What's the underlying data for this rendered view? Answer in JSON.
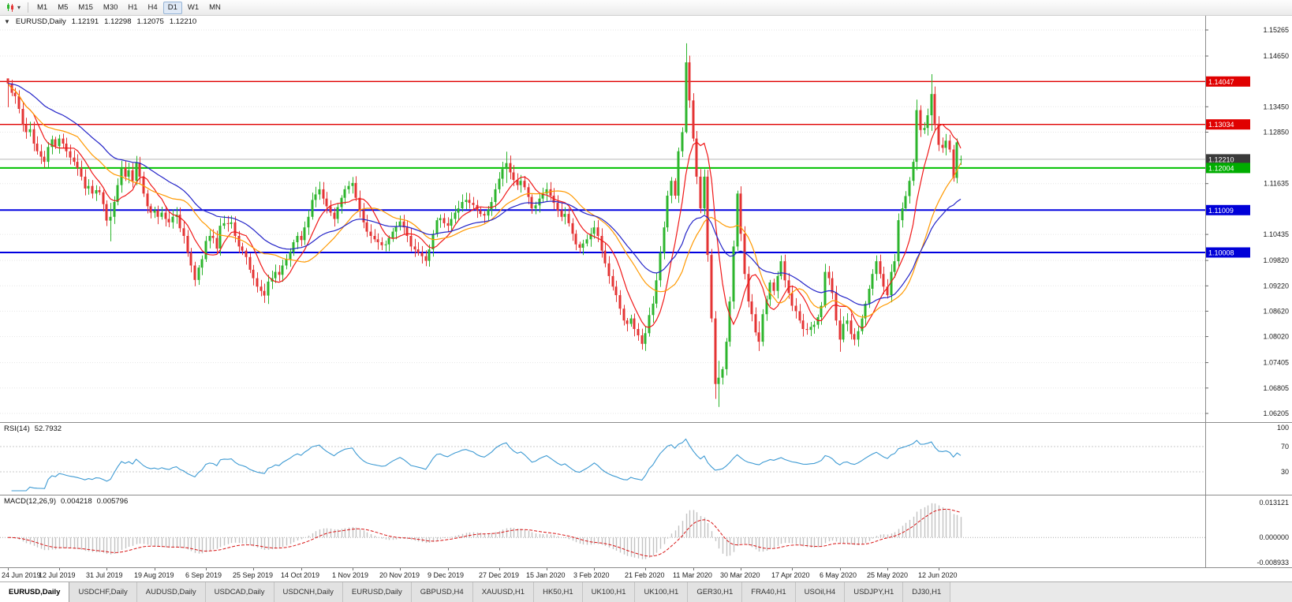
{
  "icons": {
    "collapse_arrow": "▼",
    "dropdown_caret": "▾"
  },
  "toolbar": {
    "timeframes": [
      "M1",
      "M5",
      "M15",
      "M30",
      "H1",
      "H4",
      "D1",
      "W1",
      "MN"
    ],
    "active_timeframe": "D1"
  },
  "chart": {
    "title": {
      "symbol": "EURUSD,Daily",
      "open": "1.12191",
      "high": "1.12298",
      "low": "1.12075",
      "close": "1.12210"
    },
    "price_axis": {
      "ticks": [
        {
          "label": "1.15265",
          "value": 1.15265
        },
        {
          "label": "1.14650",
          "value": 1.1465
        },
        {
          "label": "1.13450",
          "value": 1.1345
        },
        {
          "label": "1.12850",
          "value": 1.1285
        },
        {
          "label": "1.11635",
          "value": 1.11635
        },
        {
          "label": "1.10435",
          "value": 1.10435
        },
        {
          "label": "1.09820",
          "value": 1.0982
        },
        {
          "label": "1.09220",
          "value": 1.0922
        },
        {
          "label": "1.08620",
          "value": 1.0862
        },
        {
          "label": "1.08020",
          "value": 1.0802
        },
        {
          "label": "1.07405",
          "value": 1.07405
        },
        {
          "label": "1.06805",
          "value": 1.06805
        },
        {
          "label": "1.06205",
          "value": 1.06205
        }
      ],
      "tags": [
        {
          "label": "1.14047",
          "value": 1.14047,
          "bg": "#e00000"
        },
        {
          "label": "1.13034",
          "value": 1.13034,
          "bg": "#e00000"
        },
        {
          "label": "1.12210",
          "value": 1.1221,
          "bg": "#3a3a3a"
        },
        {
          "label": "1.12004",
          "value": 1.12004,
          "bg": "#00ad00"
        },
        {
          "label": "1.11009",
          "value": 1.11009,
          "bg": "#0000d8"
        },
        {
          "label": "1.10008",
          "value": 1.10008,
          "bg": "#0000d8"
        }
      ]
    }
  },
  "rsi": {
    "label": "RSI(14)",
    "value": "52.7932",
    "axis_labels": [
      "100",
      "70",
      "30"
    ]
  },
  "macd": {
    "label": "MACD(12,26,9)",
    "value_main": "0.004218",
    "value_signal": "0.005796",
    "axis_labels": [
      "0.013121",
      "0.000000",
      "-0.008933"
    ]
  },
  "date_axis": {
    "labels": [
      {
        "index": 0,
        "text": "24 Jun 2019"
      },
      {
        "index": 14,
        "text": "12 Jul 2019"
      },
      {
        "index": 27,
        "text": "31 Jul 2019"
      },
      {
        "index": 40,
        "text": "19 Aug 2019"
      },
      {
        "index": 54,
        "text": "6 Sep 2019"
      },
      {
        "index": 67,
        "text": "25 Sep 2019"
      },
      {
        "index": 80,
        "text": "14 Oct 2019"
      },
      {
        "index": 94,
        "text": "1 Nov 2019"
      },
      {
        "index": 107,
        "text": "20 Nov 2019"
      },
      {
        "index": 120,
        "text": "9 Dec 2019"
      },
      {
        "index": 134,
        "text": "27 Dec 2019"
      },
      {
        "index": 147,
        "text": "15 Jan 2020"
      },
      {
        "index": 160,
        "text": "3 Feb 2020"
      },
      {
        "index": 174,
        "text": "21 Feb 2020"
      },
      {
        "index": 187,
        "text": "11 Mar 2020"
      },
      {
        "index": 200,
        "text": "30 Mar 2020"
      },
      {
        "index": 214,
        "text": "17 Apr 2020"
      },
      {
        "index": 227,
        "text": "6 May 2020"
      },
      {
        "index": 240,
        "text": "25 May 2020"
      },
      {
        "index": 254,
        "text": "12 Jun 2020"
      }
    ]
  },
  "tabs": {
    "items": [
      "EURUSD,Daily",
      "USDCHF,Daily",
      "AUDUSD,Daily",
      "USDCAD,Daily",
      "USDCNH,Daily",
      "EURUSD,Daily",
      "GBPUSD,H4",
      "XAUUSD,H1",
      "HK50,H1",
      "UK100,H1",
      "UK100,H1",
      "GER30,H1",
      "FRA40,H1",
      "USOil,H4",
      "USDJPY,H1",
      "DJ30,H1"
    ],
    "active_index": 0
  },
  "chart_data": {
    "type": "candlestick",
    "symbol": "EURUSD",
    "timeframe": "Daily",
    "quote": {
      "open": 1.12191,
      "high": 1.12298,
      "low": 1.12075,
      "close": 1.1221
    },
    "price_range": {
      "max": 1.156,
      "min": 1.06
    },
    "up_color": "#2db52d",
    "down_color": "#e43434",
    "closes": [
      1.14,
      1.1378,
      1.137,
      1.134,
      1.1302,
      1.1285,
      1.1292,
      1.1258,
      1.124,
      1.1227,
      1.1215,
      1.125,
      1.1268,
      1.1252,
      1.127,
      1.1258,
      1.124,
      1.1225,
      1.1215,
      1.12,
      1.118,
      1.1152,
      1.1158,
      1.114,
      1.1148,
      1.1143,
      1.1115,
      1.1076,
      1.1085,
      1.112,
      1.116,
      1.12,
      1.118,
      1.1195,
      1.117,
      1.1213,
      1.118,
      1.114,
      1.111,
      1.1095,
      1.11,
      1.1085,
      1.1095,
      1.108,
      1.1072,
      1.1085,
      1.109,
      1.1058,
      1.104,
      1.1,
      1.097,
      1.0936,
      1.0965,
      1.0985,
      1.1028,
      1.104,
      1.1035,
      1.101,
      1.1064,
      1.107,
      1.1068,
      1.1072,
      1.104,
      1.1015,
      1.1005,
      1.099,
      1.096,
      1.094,
      1.092,
      1.091,
      1.0899,
      1.0932,
      1.094,
      1.0955,
      1.0948,
      1.097,
      1.0985,
      1.1002,
      1.1025,
      1.104,
      1.103,
      1.106,
      1.1085,
      1.1125,
      1.1138,
      1.115,
      1.1128,
      1.111,
      1.1095,
      1.108,
      1.1108,
      1.113,
      1.115,
      1.1158,
      1.1165,
      1.113,
      1.11,
      1.1072,
      1.105,
      1.104,
      1.1032,
      1.1025,
      1.1018,
      1.102,
      1.1035,
      1.105,
      1.1062,
      1.1074,
      1.106,
      1.104,
      1.1015,
      1.1008,
      1.1,
      1.0992,
      1.0981,
      1.1008,
      1.1045,
      1.1077,
      1.1082,
      1.107,
      1.1064,
      1.108,
      1.1095,
      1.1105,
      1.112,
      1.1125,
      1.1118,
      1.1113,
      1.11,
      1.1092,
      1.1088,
      1.1102,
      1.112,
      1.115,
      1.1175,
      1.1198,
      1.1212,
      1.119,
      1.1172,
      1.116,
      1.117,
      1.1155,
      1.1132,
      1.1105,
      1.1112,
      1.1128,
      1.114,
      1.115,
      1.1135,
      1.1118,
      1.11,
      1.1085,
      1.1092,
      1.107,
      1.1045,
      1.102,
      1.1012,
      1.1022,
      1.1032,
      1.1045,
      1.106,
      1.104,
      1.1005,
      1.0975,
      1.0945,
      1.092,
      1.09,
      1.0868,
      1.084,
      1.0832,
      1.0845,
      1.082,
      1.0805,
      1.0785,
      1.081,
      1.0853,
      1.088,
      1.0935,
      1.1,
      1.106,
      1.1135,
      1.117,
      1.1135,
      1.124,
      1.1285,
      1.145,
      1.136,
      1.127,
      1.118,
      1.1105,
      1.118,
      1.0995,
      1.0845,
      1.069,
      1.0705,
      1.0725,
      1.079,
      1.0885,
      1.1015,
      1.114,
      1.1045,
      1.095,
      1.0885,
      1.0855,
      1.0812,
      1.079,
      1.0855,
      1.089,
      1.093,
      1.091,
      1.0945,
      1.098,
      1.0935,
      1.0905,
      1.0875,
      1.0862,
      1.084,
      1.082,
      1.0818,
      1.0825,
      1.083,
      1.0848,
      1.0875,
      1.0955,
      1.094,
      1.0905,
      1.084,
      1.0795,
      1.0832,
      1.084,
      1.0808,
      1.0795,
      1.0815,
      1.0845,
      1.088,
      1.0915,
      1.095,
      1.098,
      1.095,
      1.092,
      1.09,
      1.0955,
      1.098,
      1.1077,
      1.1105,
      1.1134,
      1.117,
      1.1215,
      1.1337,
      1.129,
      1.1295,
      1.1325,
      1.1375,
      1.1305,
      1.1255,
      1.1248,
      1.1265,
      1.1244,
      1.1177,
      1.1261,
      1.1221
    ],
    "wicks": {
      "0": [
        1.1412,
        1.1344
      ],
      "28": [
        1.1118,
        1.1027
      ],
      "71": [
        1.0948,
        1.0879
      ],
      "136": [
        1.1239,
        1.1165
      ],
      "185": [
        1.1495,
        1.1282
      ],
      "193": [
        1.0862,
        1.0655
      ],
      "194": [
        1.0745,
        1.0636
      ],
      "199": [
        1.1147,
        1.1005
      ],
      "205": [
        1.0838,
        1.0768
      ],
      "223": [
        1.0974,
        1.087
      ],
      "227": [
        1.0868,
        1.0766
      ],
      "248": [
        1.1362,
        1.1195
      ],
      "252": [
        1.1422,
        1.1288
      ],
      "258": [
        1.1255,
        1.1168
      ]
    },
    "hlines": [
      {
        "price": 1.14047,
        "color": "#e00000",
        "width": 1.3
      },
      {
        "price": 1.13034,
        "color": "#e00000",
        "width": 1.3
      },
      {
        "price": 1.12004,
        "color": "#00c000",
        "width": 2
      },
      {
        "price": 1.11009,
        "color": "#0000e0",
        "width": 2
      },
      {
        "price": 1.10008,
        "color": "#0000e0",
        "width": 2
      }
    ],
    "current_price_line": {
      "price": 1.1221,
      "color": "#b8b8b8"
    },
    "moving_averages": [
      {
        "period": 8,
        "type": "sma",
        "color": "#f01818"
      },
      {
        "period": 20,
        "type": "sma",
        "color": "#ff9900"
      },
      {
        "period": 34,
        "type": "ema",
        "color": "#2424c8"
      }
    ],
    "rsi": {
      "period": 14,
      "color": "#3d9ad3",
      "levels": [
        70,
        30
      ],
      "current": 52.7932
    },
    "macd": {
      "fast": 12,
      "slow": 26,
      "signal": 9,
      "current_main": 0.004218,
      "current_signal": 0.005796,
      "histogram_color": "#c2c2c2",
      "signal_color": "#d81414",
      "axis_range": {
        "max": 0.013121,
        "zero": 0.0,
        "min": -0.008933
      }
    }
  }
}
